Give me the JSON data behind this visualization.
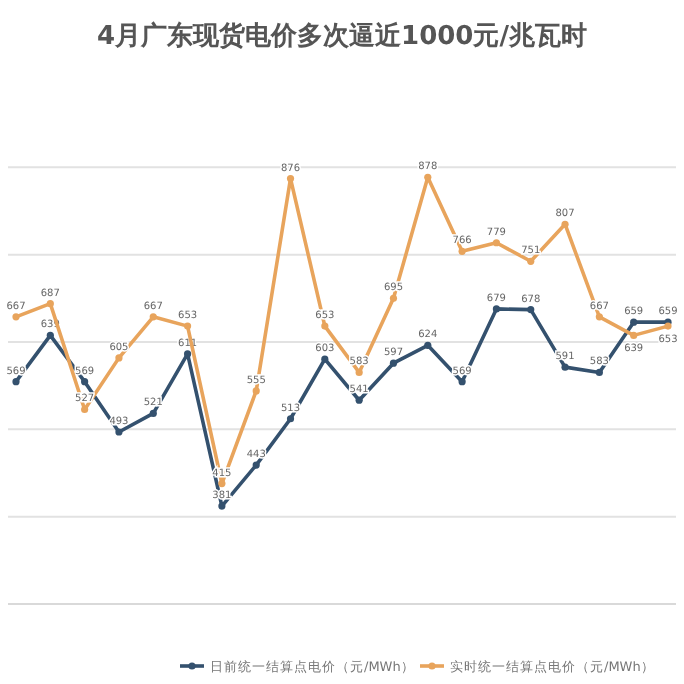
{
  "chart_data": {
    "type": "line",
    "title": "4月广东现货电价多次逼近1000元/兆瓦时",
    "categories": [
      null,
      null,
      null,
      null,
      null,
      null,
      null,
      null,
      null,
      null,
      null,
      null,
      null,
      null,
      null,
      null,
      null,
      null,
      null,
      null
    ],
    "series": [
      {
        "name": "日前统一结算点电价（元/MWh）",
        "color": "#34516e",
        "values": [
          569,
          639,
          569,
          493,
          521,
          611,
          381,
          443,
          513,
          603,
          541,
          597,
          624,
          569,
          679,
          678,
          591,
          583,
          659,
          659
        ]
      },
      {
        "name": "实时统一结算点电价（元/MWh）",
        "color": "#e8a45c",
        "values": [
          667,
          687,
          527,
          605,
          667,
          653,
          415,
          555,
          876,
          653,
          583,
          695,
          878,
          766,
          779,
          751,
          807,
          667,
          639,
          653
        ]
      }
    ],
    "yticks": [
      {
        "value": 365,
        "label": null
      },
      {
        "value": 497,
        "label": null
      },
      {
        "value": 629,
        "label": null
      },
      {
        "value": 761,
        "label": null
      },
      {
        "value": 893,
        "label": null
      }
    ],
    "grid": "y",
    "legend": "bottom",
    "marker": "circle",
    "data_labels": true
  }
}
